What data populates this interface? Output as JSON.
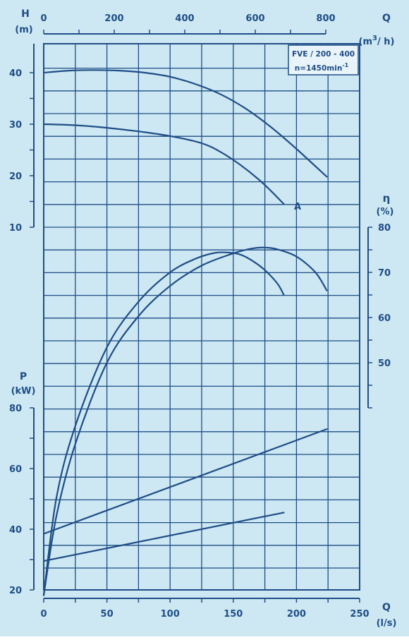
{
  "chart_data": {
    "type": "line",
    "colors": {
      "background": "#cde8f3",
      "ink": "#1f4d86"
    },
    "info_box": {
      "line1": "FVE / 200 - 400",
      "line2": "n=1450min",
      "line2_sup": "-1"
    },
    "axes": {
      "flow_m3h": {
        "label": "Q",
        "unit": "(m",
        "unit_sup": "3",
        "unit_tail": "/ h)",
        "ticks": [
          0,
          200,
          400,
          600,
          800
        ]
      },
      "flow_ls": {
        "label": "Q",
        "unit": "(l/s)",
        "range": [
          0,
          250
        ],
        "ticks": [
          0,
          50,
          100,
          150,
          200,
          250
        ]
      },
      "head": {
        "label": "H",
        "unit": "(m)",
        "range": [
          0,
          48
        ],
        "ticks": [
          10,
          20,
          30,
          40
        ]
      },
      "efficiency": {
        "label": "η",
        "unit": "(%)",
        "range": [
          40,
          80
        ],
        "ticks": [
          50,
          60,
          70,
          80
        ]
      },
      "power": {
        "label": "P",
        "unit": "(kW)",
        "range": [
          20,
          80
        ],
        "ticks": [
          20,
          40,
          60,
          80
        ]
      }
    },
    "curve_labels": {
      "head_lower": "A"
    },
    "series": [
      {
        "quantity": "head",
        "x": [
          0,
          20,
          40,
          60,
          80,
          100,
          120,
          140,
          160,
          180,
          200,
          224
        ],
        "y": [
          40,
          40.4,
          40.5,
          40.4,
          40,
          39.2,
          37.8,
          35.8,
          33,
          29.4,
          25.2,
          19.8
        ]
      },
      {
        "quantity": "head",
        "x": [
          0,
          25,
          50,
          75,
          100,
          125,
          140,
          155,
          170,
          180,
          190
        ],
        "y": [
          30,
          29.8,
          29.3,
          28.6,
          27.7,
          26.3,
          24.6,
          22.2,
          19.3,
          17,
          14.5
        ]
      },
      {
        "quantity": "efficiency",
        "x": [
          0,
          10,
          25,
          50,
          75,
          100,
          120,
          135,
          145,
          155,
          165,
          175,
          185,
          190
        ],
        "y": [
          -1.5,
          20,
          36,
          53.4,
          63.5,
          70,
          73,
          74.3,
          74.4,
          74,
          72.6,
          70.5,
          67.5,
          65
        ]
      },
      {
        "quantity": "efficiency",
        "x": [
          0,
          10,
          25,
          50,
          75,
          100,
          125,
          150,
          165,
          175,
          185,
          200,
          215,
          224
        ],
        "y": [
          -1.5,
          16,
          32,
          50,
          60.3,
          67,
          71.5,
          74.2,
          75.3,
          75.5,
          75.1,
          73.5,
          70,
          66
        ]
      },
      {
        "quantity": "power",
        "x": [
          0,
          224
        ],
        "y": [
          38.5,
          73
        ]
      },
      {
        "quantity": "power",
        "x": [
          0,
          190
        ],
        "y": [
          29.5,
          45.5
        ]
      }
    ]
  }
}
